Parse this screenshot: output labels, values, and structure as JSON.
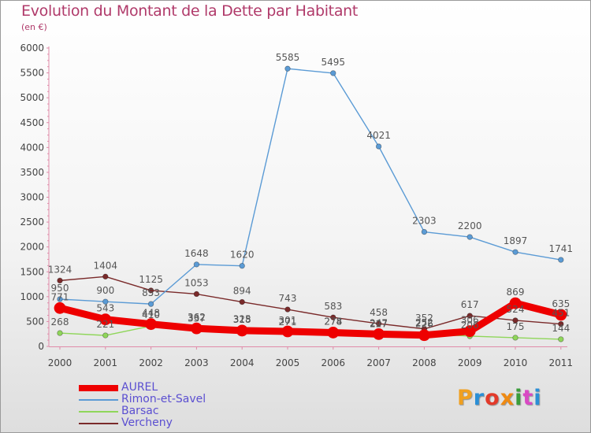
{
  "title": "Evolution du Montant de la Dette par Habitant",
  "subtitle": "(en €)",
  "logo_text": [
    "P",
    "r",
    "o",
    "x",
    "i",
    "t",
    "i"
  ],
  "logo_colors": [
    "#f0a020",
    "#2b8fd6",
    "#e33a2a",
    "#ef8a12",
    "#3a9d3a",
    "#d94ac4",
    "#2b8fd6"
  ],
  "chart_data": {
    "type": "line",
    "title": "Evolution du Montant de la Dette par Habitant",
    "subtitle": "(en €)",
    "x": [
      "2000",
      "2001",
      "2002",
      "2003",
      "2004",
      "2005",
      "2006",
      "2007",
      "2008",
      "2009",
      "2010",
      "2011"
    ],
    "ylim": [
      0,
      6000
    ],
    "yticks": [
      "0",
      "500",
      "1000",
      "1500",
      "2000",
      "2500",
      "3000",
      "3500",
      "4000",
      "4500",
      "5000",
      "5500",
      "6000"
    ],
    "grid": false,
    "legend_position": "bottom-left",
    "series": [
      {
        "name": "AUREL",
        "color": "#ee0000",
        "values": [
          771,
          543,
          448,
          362,
          318,
          301,
          278,
          247,
          226,
          306,
          869,
          635
        ],
        "labels": [
          "771",
          "543",
          "448",
          "362",
          "318",
          "301",
          "278",
          "247",
          "226",
          "306",
          "869",
          "635"
        ]
      },
      {
        "name": "Rimon-et-Savel",
        "color": "#5b9bd5",
        "values": [
          950,
          900,
          853,
          1648,
          1620,
          5585,
          5495,
          4021,
          2303,
          2200,
          1897,
          1741
        ],
        "labels": [
          "950",
          "900",
          "853",
          "1648",
          "1620",
          "5585",
          "5495",
          "4021",
          "2303",
          "2200",
          "1897",
          "1741"
        ]
      },
      {
        "name": "Barsac",
        "color": "#8fd65a",
        "values": [
          268,
          221,
          410,
          337,
          325,
          271,
          274,
          227,
          252,
          206,
          175,
          144
        ],
        "labels": [
          "268",
          "221",
          "410",
          "337",
          "325",
          "271",
          "274",
          "227",
          "252",
          "206",
          "175",
          "144"
        ]
      },
      {
        "name": "Vercheny",
        "color": "#7a2a2a",
        "values": [
          1324,
          1404,
          1125,
          1053,
          894,
          743,
          583,
          458,
          352,
          617,
          524,
          451
        ],
        "labels": [
          "1324",
          "1404",
          "1125",
          "1053",
          "894",
          "743",
          "583",
          "458",
          "352",
          "617",
          "524",
          "451"
        ]
      }
    ]
  }
}
